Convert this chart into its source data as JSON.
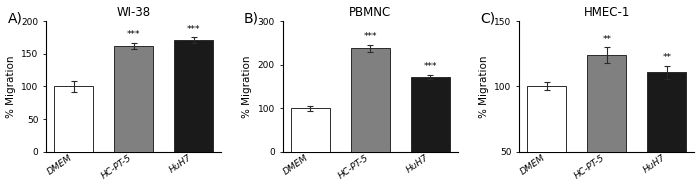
{
  "panels": [
    {
      "label": "A)",
      "title": "WI-38",
      "categories": [
        "DMEM",
        "HC-PT-5",
        "HuH7"
      ],
      "values": [
        100,
        162,
        171
      ],
      "errors": [
        8,
        5,
        4
      ],
      "ylim": [
        0,
        200
      ],
      "yticks": [
        0,
        50,
        100,
        150,
        200
      ],
      "bar_colors": [
        "#ffffff",
        "#808080",
        "#1a1a1a"
      ],
      "significance": [
        "",
        "***",
        "***"
      ],
      "ylabel": "% Migration"
    },
    {
      "label": "B)",
      "title": "PBMNC",
      "categories": [
        "DMEM",
        "HC-PT-5",
        "HuH7"
      ],
      "values": [
        100,
        238,
        172
      ],
      "errors": [
        6,
        8,
        5
      ],
      "ylim": [
        0,
        300
      ],
      "yticks": [
        0,
        100,
        200,
        300
      ],
      "bar_colors": [
        "#ffffff",
        "#808080",
        "#1a1a1a"
      ],
      "significance": [
        "",
        "***",
        "***"
      ],
      "ylabel": "% Migration"
    },
    {
      "label": "C)",
      "title": "HMEC-1",
      "categories": [
        "DMEM",
        "HC-PT-5",
        "HuH7"
      ],
      "values": [
        100,
        124,
        111
      ],
      "errors": [
        3,
        6,
        5
      ],
      "ylim": [
        50,
        150
      ],
      "yticks": [
        50,
        100,
        150
      ],
      "bar_colors": [
        "#ffffff",
        "#808080",
        "#1a1a1a"
      ],
      "significance": [
        "",
        "**",
        "**"
      ],
      "ylabel": "% Migration"
    }
  ],
  "background_color": "#ffffff",
  "bar_width": 0.65,
  "bar_edge_color": "#2a2a2a",
  "error_color": "#2a2a2a",
  "sig_fontsize": 6.5,
  "tick_fontsize": 6.5,
  "label_fontsize": 7.5,
  "title_fontsize": 8.5,
  "panel_label_fontsize": 10
}
